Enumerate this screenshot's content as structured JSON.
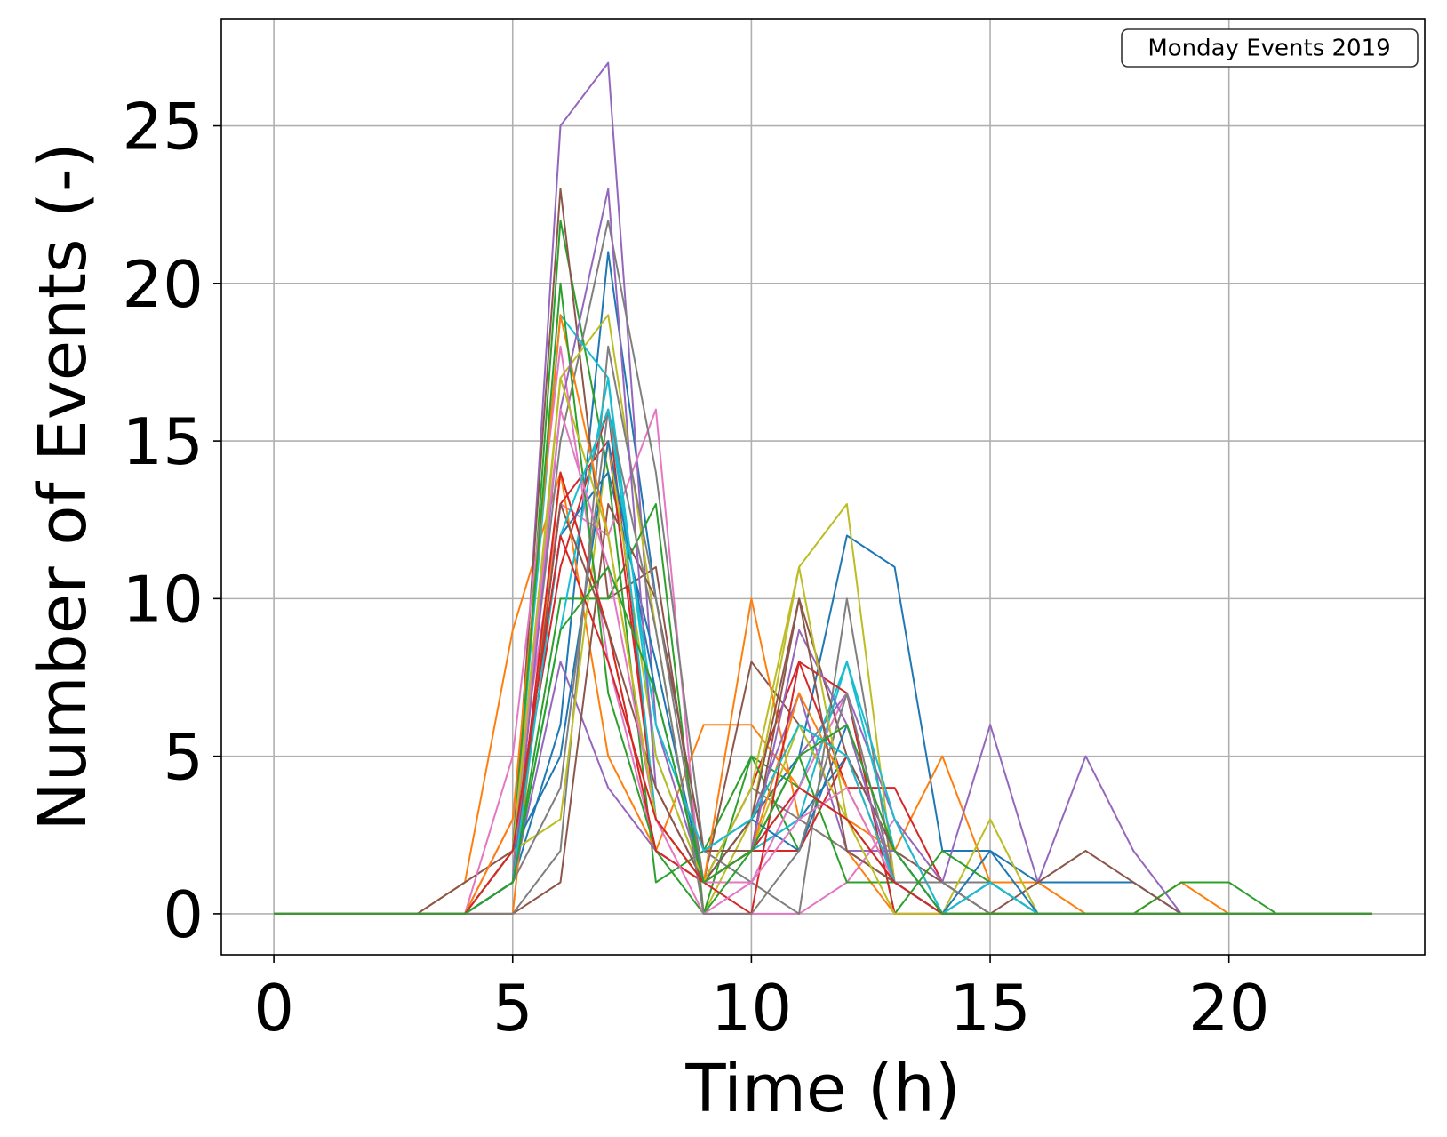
{
  "chart_data": {
    "type": "line",
    "xlabel": "Time (h)",
    "ylabel": "Number of Events (-)",
    "legend_label": "Monday Events 2019",
    "legend_position": "top-right",
    "grid": true,
    "xlim": [
      -1.1,
      24.1
    ],
    "ylim": [
      -1.3,
      28.4
    ],
    "x_ticks": [
      0,
      5,
      10,
      15,
      20
    ],
    "y_ticks": [
      0,
      5,
      10,
      15,
      20,
      25
    ],
    "x": [
      0,
      1,
      2,
      3,
      4,
      5,
      6,
      7,
      8,
      9,
      10,
      11,
      12,
      13,
      14,
      15,
      16,
      17,
      18,
      19,
      20,
      21,
      22,
      23
    ],
    "series": [
      {
        "color": "#1f77b4",
        "values": [
          0,
          0,
          0,
          0,
          0,
          1,
          6,
          21,
          10,
          2,
          3,
          5,
          12,
          11,
          2,
          2,
          1,
          1,
          1,
          0,
          0,
          0,
          0,
          0
        ]
      },
      {
        "color": "#ff7f0e",
        "values": [
          0,
          0,
          0,
          0,
          1,
          9,
          14,
          9,
          2,
          6,
          6,
          4,
          3,
          2,
          5,
          1,
          1,
          0,
          0,
          1,
          0,
          0,
          0,
          0
        ]
      },
      {
        "color": "#2ca02c",
        "values": [
          0,
          0,
          0,
          0,
          0,
          1,
          22,
          14,
          1,
          2,
          5,
          4,
          3,
          1,
          1,
          1,
          0,
          0,
          0,
          1,
          1,
          0,
          0,
          0
        ]
      },
      {
        "color": "#d62728",
        "values": [
          0,
          0,
          0,
          0,
          0,
          2,
          11,
          16,
          3,
          1,
          4,
          8,
          4,
          4,
          1,
          0,
          0,
          0,
          0,
          0,
          0,
          0,
          0,
          0
        ]
      },
      {
        "color": "#9467bd",
        "values": [
          0,
          0,
          0,
          0,
          0,
          1,
          25,
          27,
          6,
          1,
          2,
          5,
          7,
          3,
          1,
          6,
          1,
          5,
          2,
          0,
          0,
          0,
          0,
          0
        ]
      },
      {
        "color": "#8c564b",
        "values": [
          0,
          0,
          0,
          0,
          1,
          2,
          23,
          10,
          11,
          1,
          8,
          6,
          5,
          2,
          1,
          0,
          1,
          2,
          1,
          0,
          0,
          0,
          0,
          0
        ]
      },
      {
        "color": "#e377c2",
        "values": [
          0,
          0,
          0,
          0,
          0,
          3,
          13,
          12,
          16,
          0,
          0,
          0,
          1,
          3,
          0,
          0,
          0,
          0,
          0,
          0,
          0,
          0,
          0,
          0
        ]
      },
      {
        "color": "#7f7f7f",
        "values": [
          0,
          0,
          0,
          0,
          0,
          2,
          15,
          22,
          14,
          2,
          1,
          0,
          10,
          1,
          1,
          1,
          0,
          0,
          0,
          0,
          0,
          0,
          0,
          0
        ]
      },
      {
        "color": "#bcbd22",
        "values": [
          0,
          0,
          0,
          0,
          0,
          1,
          17,
          19,
          9,
          0,
          3,
          11,
          13,
          1,
          0,
          3,
          0,
          0,
          0,
          0,
          0,
          0,
          0,
          0
        ]
      },
      {
        "color": "#17becf",
        "values": [
          0,
          0,
          0,
          0,
          0,
          2,
          19,
          17,
          5,
          1,
          2,
          4,
          8,
          3,
          0,
          0,
          0,
          0,
          0,
          0,
          0,
          0,
          0,
          0
        ]
      },
      {
        "color": "#1f77b4",
        "values": [
          0,
          0,
          0,
          0,
          0,
          2,
          12,
          14,
          8,
          1,
          2,
          3,
          5,
          2,
          0,
          2,
          0,
          0,
          0,
          0,
          0,
          0,
          0,
          0
        ]
      },
      {
        "color": "#ff7f0e",
        "values": [
          0,
          0,
          0,
          0,
          0,
          0,
          14,
          5,
          2,
          1,
          10,
          3,
          2,
          0,
          0,
          0,
          0,
          0,
          0,
          0,
          0,
          0,
          0,
          0
        ]
      },
      {
        "color": "#2ca02c",
        "values": [
          0,
          0,
          0,
          0,
          0,
          1,
          10,
          10,
          13,
          0,
          5,
          2,
          7,
          0,
          2,
          1,
          0,
          0,
          0,
          0,
          0,
          0,
          0,
          0
        ]
      },
      {
        "color": "#d62728",
        "values": [
          0,
          0,
          0,
          0,
          0,
          1,
          13,
          15,
          3,
          1,
          2,
          2,
          5,
          1,
          0,
          0,
          0,
          0,
          0,
          0,
          0,
          0,
          0,
          0
        ]
      },
      {
        "color": "#9467bd",
        "values": [
          0,
          0,
          0,
          0,
          0,
          1,
          8,
          4,
          2,
          1,
          3,
          7,
          2,
          2,
          0,
          0,
          0,
          0,
          0,
          0,
          0,
          0,
          0,
          0
        ]
      },
      {
        "color": "#8c564b",
        "values": [
          0,
          0,
          0,
          0,
          0,
          0,
          1,
          13,
          10,
          2,
          2,
          10,
          5,
          2,
          0,
          1,
          0,
          0,
          0,
          0,
          0,
          0,
          0,
          0
        ]
      },
      {
        "color": "#e377c2",
        "values": [
          0,
          0,
          0,
          0,
          0,
          5,
          18,
          8,
          2,
          1,
          1,
          4,
          7,
          1,
          0,
          1,
          0,
          0,
          0,
          0,
          0,
          0,
          0,
          0
        ]
      },
      {
        "color": "#7f7f7f",
        "values": [
          0,
          0,
          0,
          0,
          0,
          0,
          2,
          18,
          10,
          1,
          4,
          3,
          2,
          1,
          1,
          0,
          0,
          0,
          0,
          0,
          0,
          0,
          0,
          0
        ]
      },
      {
        "color": "#bcbd22",
        "values": [
          0,
          0,
          0,
          0,
          0,
          2,
          3,
          15,
          5,
          1,
          2,
          6,
          3,
          1,
          0,
          0,
          0,
          0,
          0,
          0,
          0,
          0,
          0,
          0
        ]
      },
      {
        "color": "#17becf",
        "values": [
          0,
          0,
          0,
          0,
          0,
          1,
          9,
          17,
          3,
          1,
          2,
          3,
          8,
          2,
          0,
          1,
          0,
          0,
          0,
          0,
          0,
          0,
          0,
          0
        ]
      },
      {
        "color": "#1f77b4",
        "values": [
          0,
          0,
          0,
          0,
          0,
          2,
          5,
          15,
          7,
          1,
          3,
          2,
          6,
          1,
          0,
          0,
          0,
          0,
          0,
          0,
          0,
          0,
          0,
          0
        ]
      },
      {
        "color": "#ff7f0e",
        "values": [
          0,
          0,
          0,
          0,
          0,
          3,
          19,
          12,
          3,
          1,
          2,
          7,
          4,
          1,
          0,
          0,
          0,
          0,
          0,
          0,
          0,
          0,
          0,
          0
        ]
      },
      {
        "color": "#2ca02c",
        "values": [
          0,
          0,
          0,
          0,
          0,
          2,
          20,
          7,
          2,
          0,
          2,
          5,
          1,
          1,
          0,
          0,
          0,
          0,
          0,
          0,
          0,
          0,
          0,
          0
        ]
      },
      {
        "color": "#d62728",
        "values": [
          0,
          0,
          0,
          0,
          0,
          1,
          14,
          9,
          2,
          1,
          0,
          8,
          7,
          0,
          0,
          0,
          0,
          0,
          0,
          0,
          0,
          0,
          0,
          0
        ]
      },
      {
        "color": "#9467bd",
        "values": [
          0,
          0,
          0,
          0,
          0,
          1,
          16,
          23,
          4,
          1,
          2,
          9,
          6,
          1,
          0,
          0,
          0,
          0,
          0,
          0,
          0,
          0,
          0,
          0
        ]
      },
      {
        "color": "#8c564b",
        "values": [
          0,
          0,
          0,
          0,
          0,
          1,
          13,
          9,
          4,
          1,
          3,
          10,
          2,
          1,
          0,
          0,
          0,
          0,
          0,
          0,
          0,
          0,
          0,
          0
        ]
      },
      {
        "color": "#e377c2",
        "values": [
          0,
          0,
          0,
          0,
          0,
          2,
          16,
          11,
          3,
          0,
          1,
          3,
          4,
          1,
          0,
          0,
          0,
          0,
          0,
          0,
          0,
          0,
          0,
          0
        ]
      },
      {
        "color": "#7f7f7f",
        "values": [
          0,
          0,
          0,
          0,
          0,
          1,
          4,
          16,
          9,
          0,
          0,
          2,
          7,
          1,
          0,
          0,
          0,
          0,
          0,
          0,
          0,
          0,
          0,
          0
        ]
      },
      {
        "color": "#bcbd22",
        "values": [
          0,
          0,
          0,
          0,
          0,
          2,
          17,
          12,
          3,
          1,
          4,
          11,
          3,
          0,
          0,
          0,
          0,
          0,
          0,
          0,
          0,
          0,
          0,
          0
        ]
      },
      {
        "color": "#17becf",
        "values": [
          0,
          0,
          0,
          0,
          0,
          1,
          12,
          16,
          6,
          2,
          3,
          6,
          5,
          1,
          0,
          1,
          0,
          0,
          0,
          0,
          0,
          0,
          0,
          0
        ]
      },
      {
        "color": "#d62728",
        "values": [
          0,
          0,
          0,
          0,
          0,
          2,
          12,
          8,
          3,
          1,
          2,
          4,
          3,
          1,
          0,
          0,
          0,
          0,
          0,
          0,
          0,
          0,
          0,
          0
        ]
      },
      {
        "color": "#2ca02c",
        "values": [
          0,
          0,
          0,
          0,
          0,
          1,
          9,
          11,
          7,
          1,
          2,
          5,
          6,
          2,
          0,
          0,
          0,
          0,
          0,
          0,
          0,
          0,
          0,
          0
        ]
      }
    ]
  }
}
